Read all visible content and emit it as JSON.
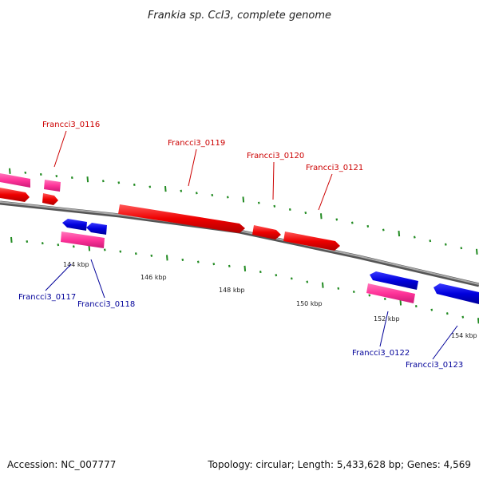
{
  "title": "Frankia sp. CcI3, complete genome",
  "footer": {
    "accession": "Accession: NC_007777",
    "summary": "Topology: circular; Length: 5,433,628 bp; Genes: 4,569"
  },
  "colors": {
    "forward_gene": "#ee0000",
    "forward_rna_like": "#ff3399",
    "reverse_gene": "#0000dd",
    "backbone": "#888888",
    "tick": "#228b22",
    "forward_label": "#cc0000",
    "reverse_label": "#000099"
  },
  "ticks": [
    {
      "label": "144 kbp"
    },
    {
      "label": "146 kbp"
    },
    {
      "label": "148 kbp"
    },
    {
      "label": "150 kbp"
    },
    {
      "label": "152 kbp"
    },
    {
      "label": "154 kbp"
    }
  ],
  "genes": [
    {
      "label": "Francci3_0116",
      "strand": "forward"
    },
    {
      "label": "Francci3_0117",
      "strand": "reverse"
    },
    {
      "label": "Francci3_0118",
      "strand": "reverse"
    },
    {
      "label": "Francci3_0119",
      "strand": "forward"
    },
    {
      "label": "Francci3_0120",
      "strand": "forward"
    },
    {
      "label": "Francci3_0121",
      "strand": "forward"
    },
    {
      "label": "Francci3_0122",
      "strand": "reverse"
    },
    {
      "label": "Francci3_0123",
      "strand": "reverse"
    }
  ]
}
